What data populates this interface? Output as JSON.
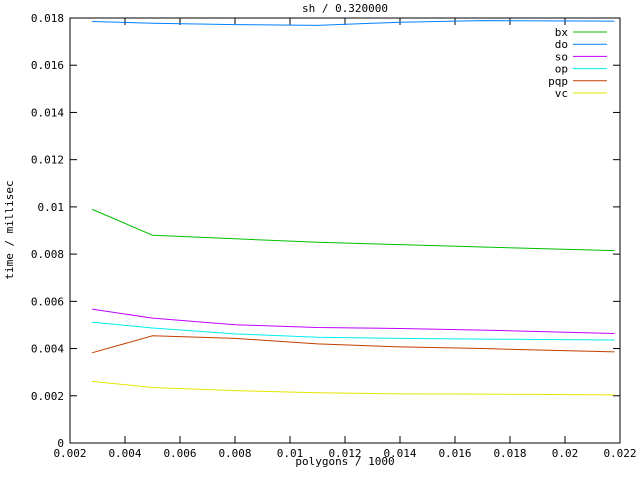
{
  "chart_data": {
    "type": "line",
    "title": "sh / 0.320000",
    "xlabel": "polygons / 1000",
    "ylabel": "time / millisec",
    "xlim": [
      0.002,
      0.022
    ],
    "ylim": [
      0,
      0.018
    ],
    "xtick_labels": [
      "0.002",
      "0.004",
      "0.006",
      "0.008",
      "0.01",
      "0.012",
      "0.014",
      "0.016",
      "0.018",
      "0.02",
      "0.022"
    ],
    "ytick_labels": [
      "0",
      "0.002",
      "0.004",
      "0.006",
      "0.008",
      "0.01",
      "0.012",
      "0.014",
      "0.016",
      "0.018"
    ],
    "grid": false,
    "legend_position": "top-right-inside",
    "background_color": "#ffffff",
    "border_color": "#000000",
    "x": [
      0.0028,
      0.005,
      0.008,
      0.011,
      0.014,
      0.017,
      0.0218
    ],
    "series": [
      {
        "name": "bx",
        "color": "#00c000",
        "values": [
          0.0099,
          0.0088,
          0.00865,
          0.0085,
          0.0084,
          0.0083,
          0.00815
        ]
      },
      {
        "name": "do",
        "color": "#0080ff",
        "values": [
          0.01785,
          0.01778,
          0.01772,
          0.01769,
          0.01782,
          0.01789,
          0.01787
        ]
      },
      {
        "name": "so",
        "color": "#c000ff",
        "values": [
          0.00567,
          0.00529,
          0.00501,
          0.00489,
          0.00485,
          0.00478,
          0.00464
        ]
      },
      {
        "name": "op",
        "color": "#00eeee",
        "values": [
          0.00512,
          0.00487,
          0.00462,
          0.00448,
          0.00443,
          0.0044,
          0.00436
        ]
      },
      {
        "name": "pqp",
        "color": "#c04000",
        "values": [
          0.00382,
          0.00454,
          0.00443,
          0.0042,
          0.00407,
          0.004,
          0.00386
        ]
      },
      {
        "name": "vc",
        "color": "#e5e500",
        "values": [
          0.00261,
          0.00235,
          0.00222,
          0.00213,
          0.00208,
          0.00207,
          0.00204
        ]
      }
    ]
  }
}
